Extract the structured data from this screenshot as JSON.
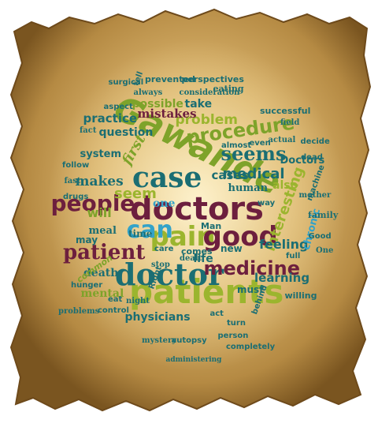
{
  "colors": {
    "parchment": "#c9a35c",
    "parchment_dark": "#8a6326",
    "teal": "#1b6e73",
    "green": "#7ea32a",
    "olive": "#9bb52e",
    "maroon": "#6d1f3e",
    "sky": "#33a3c9",
    "light_green": "#b6cf4a"
  },
  "words": [
    {
      "text": "Gawande",
      "color": "green"
    },
    {
      "text": "doctors",
      "color": "maroon"
    },
    {
      "text": "patients",
      "color": "olive"
    },
    {
      "text": "doctor",
      "color": "teal"
    },
    {
      "text": "pain",
      "color": "olive"
    },
    {
      "text": "good",
      "color": "maroon"
    },
    {
      "text": "case",
      "color": "teal"
    },
    {
      "text": "people",
      "color": "maroon"
    },
    {
      "text": "can",
      "color": "sky"
    },
    {
      "text": "patient",
      "color": "maroon"
    },
    {
      "text": "procedure",
      "color": "green"
    },
    {
      "text": "medicine",
      "color": "maroon"
    },
    {
      "text": "seems",
      "color": "teal"
    },
    {
      "text": "seem",
      "color": "olive"
    },
    {
      "text": "medical",
      "color": "teal"
    },
    {
      "text": "makes",
      "color": "teal"
    },
    {
      "text": "problem",
      "color": "olive"
    },
    {
      "text": "interesting",
      "color": "olive"
    },
    {
      "text": "first",
      "color": "green"
    },
    {
      "text": "will",
      "color": "green"
    },
    {
      "text": "feeling",
      "color": "teal"
    },
    {
      "text": "mistakes",
      "color": "maroon"
    },
    {
      "text": "practice",
      "color": "teal"
    },
    {
      "text": "cases",
      "color": "teal"
    },
    {
      "text": "death",
      "color": "teal"
    },
    {
      "text": "physicians",
      "color": "teal"
    },
    {
      "text": "learning",
      "color": "teal"
    },
    {
      "text": "mental",
      "color": "green"
    },
    {
      "text": "question",
      "color": "teal"
    },
    {
      "text": "life",
      "color": "teal"
    },
    {
      "text": "one",
      "color": "sky"
    },
    {
      "text": "take",
      "color": "teal"
    },
    {
      "text": "possible",
      "color": "green"
    },
    {
      "text": "meal",
      "color": "teal"
    },
    {
      "text": "system",
      "color": "teal"
    },
    {
      "text": "also",
      "color": "olive"
    },
    {
      "text": "human",
      "color": "teal"
    },
    {
      "text": "Doctors",
      "color": "teal"
    },
    {
      "text": "chronic",
      "color": "sky"
    },
    {
      "text": "time",
      "color": "teal"
    },
    {
      "text": "new",
      "color": "teal"
    },
    {
      "text": "must",
      "color": "teal"
    },
    {
      "text": "eating",
      "color": "teal"
    },
    {
      "text": "prevented",
      "color": "teal"
    },
    {
      "text": "perspectives",
      "color": "teal"
    },
    {
      "text": "consideration",
      "color": "teal"
    },
    {
      "text": "common",
      "color": "green"
    },
    {
      "text": "hunger",
      "color": "teal"
    },
    {
      "text": "mystery",
      "color": "teal"
    },
    {
      "text": "autopsy",
      "color": "teal"
    },
    {
      "text": "person",
      "color": "teal"
    },
    {
      "text": "administering",
      "color": "teal"
    },
    {
      "text": "completely",
      "color": "teal"
    },
    {
      "text": "comes",
      "color": "teal"
    },
    {
      "text": "dealt",
      "color": "teal"
    },
    {
      "text": "may",
      "color": "teal"
    },
    {
      "text": "willing",
      "color": "teal"
    },
    {
      "text": "family",
      "color": "teal"
    },
    {
      "text": "behind",
      "color": "teal"
    },
    {
      "text": "surgical",
      "color": "teal"
    },
    {
      "text": "always",
      "color": "teal"
    },
    {
      "text": "aspect",
      "color": "teal"
    },
    {
      "text": "successful",
      "color": "teal"
    },
    {
      "text": "field",
      "color": "teal"
    },
    {
      "text": "decide",
      "color": "teal"
    },
    {
      "text": "machine",
      "color": "teal"
    },
    {
      "text": "mother",
      "color": "teal"
    },
    {
      "text": "Man",
      "color": "teal"
    },
    {
      "text": "drugs",
      "color": "teal"
    },
    {
      "text": "fast",
      "color": "teal"
    },
    {
      "text": "follow",
      "color": "teal"
    },
    {
      "text": "care",
      "color": "teal"
    },
    {
      "text": "night",
      "color": "teal"
    },
    {
      "text": "control",
      "color": "teal"
    },
    {
      "text": "eat",
      "color": "teal"
    },
    {
      "text": "problems",
      "color": "teal"
    },
    {
      "text": "almost",
      "color": "teal"
    },
    {
      "text": "even",
      "color": "teal"
    },
    {
      "text": "actual",
      "color": "teal"
    },
    {
      "text": "way",
      "color": "teal"
    },
    {
      "text": "Good",
      "color": "teal"
    },
    {
      "text": "stop",
      "color": "teal"
    },
    {
      "text": "act",
      "color": "teal"
    },
    {
      "text": "turn",
      "color": "teal"
    },
    {
      "text": "fact",
      "color": "teal"
    },
    {
      "text": "full",
      "color": "teal"
    },
    {
      "text": "Right",
      "color": "teal"
    },
    {
      "text": "One",
      "color": "teal"
    },
    {
      "text": "tell",
      "color": "teal"
    },
    {
      "text": "dead",
      "color": "teal"
    }
  ]
}
